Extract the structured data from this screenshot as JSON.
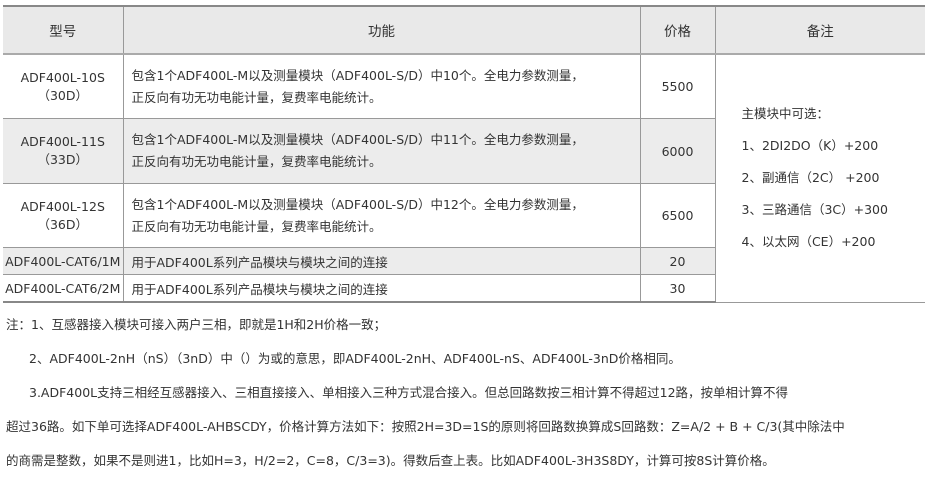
{
  "table": {
    "headers": [
      "型号",
      "功能",
      "价格",
      "备注"
    ],
    "rows": [
      {
        "model": "ADF400L-10S",
        "model2": "（30D）",
        "func1": "包含1个ADF400L-M以及测量模块（ADF400L-S/D）中10个。全电力参数测量，",
        "func2": "正反向有功无功电能计量，复费率电能统计。",
        "price": "5500"
      },
      {
        "model": "ADF400L-11S",
        "model2": "（33D）",
        "func1": "包含1个ADF400L-M以及测量模块（ADF400L-S/D）中11个。全电力参数测量，",
        "func2": "正反向有功无功电能计量，复费率电能统计。",
        "price": "6000"
      },
      {
        "model": "ADF400L-12S",
        "model2": "（36D）",
        "func1": "包含1个ADF400L-M以及测量模块（ADF400L-S/D）中12个。全电力参数测量，",
        "func2": "正反向有功无功电能计量，复费率电能统计。",
        "price": "6500"
      },
      {
        "model": "ADF400L-CAT6/1M",
        "func1": "用于ADF400L系列产品模块与模块之间的连接",
        "price": "20"
      },
      {
        "model": "ADF400L-CAT6/2M",
        "func1": "用于ADF400L系列产品模块与模块之间的连接",
        "price": "30"
      }
    ],
    "remarks": [
      "主模块中可选：",
      "1、2DI2DO（K）+200",
      "2、副通信（2C） +200",
      "3、三路通信（3C）+300",
      "4、以太网（CE）+200"
    ]
  },
  "notes": [
    "注：1、互感器接入模块可接入两户三相，即就是1H和2H价格一致；",
    "2、ADF400L-2nH（nS）（3nD）中（）为或的意思，即ADF400L-2nH、ADF400L-nS、ADF400L-3nD价格相同。",
    "3.ADF400L支持三相经互感器接入、三相直接接入、单相接入三种方式混合接入。但总回路数按三相计算不得超过12路，按单相计算不得",
    "超过36路。如下单可选择ADF400L-AHBSCDY，价格计算方法如下：按照2H=3D=1S的原则将回路数换算成S回路数：Z=A/2 + B + C/3(其中除法中",
    "的商需是整数，如果不是则进1，比如H=3，H/2=2，C=8，C/3=3)。得数后查上表。比如ADF400L-3H3S8DY，计算可按8S计算价格。"
  ]
}
